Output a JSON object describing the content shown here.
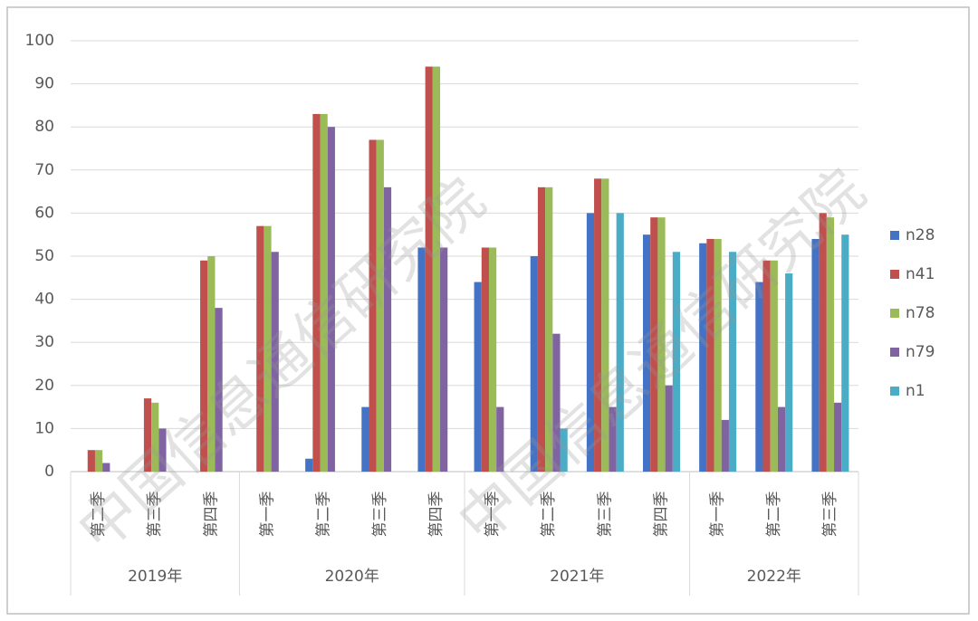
{
  "chart_data": {
    "type": "grouped_bar",
    "watermark": "中国信息通信研究院",
    "category_groups": [
      {
        "name": "2019年",
        "categories": [
          "第二季",
          "第三季",
          "第四季"
        ]
      },
      {
        "name": "2020年",
        "categories": [
          "第一季",
          "第二季",
          "第三季",
          "第四季"
        ]
      },
      {
        "name": "2021年",
        "categories": [
          "第一季",
          "第二季",
          "第三季",
          "第四季"
        ]
      },
      {
        "name": "2022年",
        "categories": [
          "第一季",
          "第二季",
          "第三季"
        ]
      }
    ],
    "series": [
      {
        "name": "n28",
        "color": "#4472c4",
        "values": [
          0,
          0,
          0,
          0,
          3,
          15,
          52,
          44,
          50,
          60,
          55,
          53,
          44,
          54
        ]
      },
      {
        "name": "n41",
        "color": "#c0504d",
        "values": [
          5,
          17,
          49,
          57,
          83,
          77,
          94,
          52,
          66,
          68,
          59,
          54,
          49,
          60
        ]
      },
      {
        "name": "n78",
        "color": "#9bbb59",
        "values": [
          5,
          16,
          50,
          57,
          83,
          77,
          94,
          52,
          66,
          68,
          59,
          54,
          49,
          59
        ]
      },
      {
        "name": "n79",
        "color": "#8064a2",
        "values": [
          2,
          10,
          38,
          51,
          80,
          66,
          52,
          15,
          32,
          15,
          20,
          12,
          15,
          16
        ]
      },
      {
        "name": "n1",
        "color": "#4bacc6",
        "values": [
          0,
          0,
          0,
          0,
          0,
          0,
          0,
          0,
          10,
          60,
          51,
          51,
          46,
          55
        ]
      }
    ],
    "ylim": [
      0,
      100
    ],
    "yticks": [
      0,
      10,
      20,
      30,
      40,
      50,
      60,
      70,
      80,
      90,
      100
    ],
    "grid": true,
    "legend": "right"
  }
}
